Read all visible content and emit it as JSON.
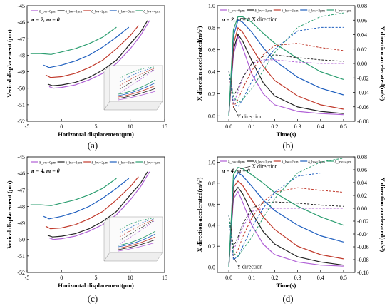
{
  "captions": [
    "(a)",
    "(b)",
    "(c)",
    "(d)"
  ],
  "colors": {
    "s0": "#b05fd6",
    "s1": "#222222",
    "s2": "#c0392b",
    "s3": "#1f5fbf",
    "s4": "#2a9d6f"
  },
  "legend_labels": [
    "δ_bw=0μm",
    "δ_bw=1μm",
    "δ_bw=2μm",
    "δ_bw=3μm",
    "δ_bw=4μm"
  ],
  "chart_data": [
    {
      "id": "a",
      "type": "line",
      "annotation": "n = 2, m = 0",
      "xlabel": "Horizontal displacement(μm)",
      "ylabel": "Verical displacement (μm)",
      "xlim": [
        -5,
        15
      ],
      "ylim": [
        -52,
        -45
      ],
      "xticks": [
        -5,
        0,
        5,
        10,
        15
      ],
      "yticks": [
        -52,
        -51,
        -50,
        -49,
        -48,
        -47,
        -46,
        -45
      ],
      "series": [
        {
          "name": "δ_bw=0μm",
          "x": [
            -1.8,
            -1.2,
            0,
            2,
            4,
            6,
            8,
            10,
            11.5,
            12.8
          ],
          "y": [
            -49.9,
            -50.0,
            -49.95,
            -49.8,
            -49.5,
            -49.1,
            -48.5,
            -47.6,
            -46.8,
            -45.9
          ]
        },
        {
          "name": "δ_bw=1μm",
          "x": [
            -2.0,
            -1.3,
            0,
            2,
            4,
            6,
            8,
            10,
            11.5,
            12.5
          ],
          "y": [
            -49.75,
            -49.85,
            -49.8,
            -49.65,
            -49.35,
            -48.9,
            -48.3,
            -47.3,
            -46.6,
            -45.9
          ]
        },
        {
          "name": "δ_bw=2μm",
          "x": [
            -2.3,
            -1.6,
            0,
            2,
            4,
            6,
            8,
            10,
            11.2
          ],
          "y": [
            -49.2,
            -49.35,
            -49.3,
            -49.1,
            -48.75,
            -48.3,
            -47.6,
            -46.8,
            -46.2
          ]
        },
        {
          "name": "δ_bw=3μm",
          "x": [
            -2.6,
            -1.8,
            0,
            2,
            4,
            6,
            8,
            9.8
          ],
          "y": [
            -48.6,
            -48.75,
            -48.6,
            -48.35,
            -48.0,
            -47.5,
            -46.9,
            -46.3
          ]
        },
        {
          "name": "δ_bw=4μm",
          "x": [
            -4.5,
            -3,
            -1.5,
            0,
            2,
            4,
            6,
            8
          ],
          "y": [
            -47.9,
            -47.9,
            -47.95,
            -47.8,
            -47.6,
            -47.3,
            -46.9,
            -46.3
          ]
        }
      ]
    },
    {
      "id": "b",
      "type": "line",
      "annotation": "n = 2, m = 0",
      "xlabel": "Time(s)",
      "ylabel": "X direction accelerated(m/s²)",
      "ylabel_right": "Y direction accelerated(m/s²)",
      "xlim": [
        -0.05,
        0.55
      ],
      "ylim": [
        -0.05,
        1.0
      ],
      "ylim_right": [
        -0.08,
        0.08
      ],
      "xticks": [
        0.0,
        0.1,
        0.2,
        0.3,
        0.4,
        0.5
      ],
      "yticks": [
        0.0,
        0.2,
        0.4,
        0.6,
        0.8,
        1.0
      ],
      "yticks_right": [
        -0.08,
        -0.06,
        -0.04,
        -0.02,
        0.0,
        0.02,
        0.04,
        0.06,
        0.08
      ],
      "text_labels": [
        "X direction",
        "Y direction"
      ],
      "x": [
        0.0,
        0.02,
        0.04,
        0.06,
        0.1,
        0.15,
        0.2,
        0.3,
        0.4,
        0.5
      ],
      "series_x": [
        {
          "name": "δ_bw=0μm",
          "values": [
            0.0,
            0.55,
            0.72,
            0.62,
            0.38,
            0.2,
            0.1,
            0.04,
            0.02,
            0.01
          ]
        },
        {
          "name": "δ_bw=1μm",
          "values": [
            0.0,
            0.6,
            0.74,
            0.68,
            0.5,
            0.3,
            0.18,
            0.08,
            0.04,
            0.02
          ]
        },
        {
          "name": "δ_bw=2μm",
          "values": [
            0.0,
            0.65,
            0.8,
            0.76,
            0.62,
            0.45,
            0.32,
            0.18,
            0.1,
            0.06
          ]
        },
        {
          "name": "δ_bw=3μm",
          "values": [
            0.0,
            0.72,
            0.87,
            0.85,
            0.76,
            0.62,
            0.5,
            0.35,
            0.25,
            0.19
          ]
        },
        {
          "name": "δ_bw=4μm",
          "values": [
            0.0,
            0.78,
            0.9,
            0.9,
            0.85,
            0.75,
            0.66,
            0.52,
            0.4,
            0.33
          ]
        }
      ],
      "series_y": [
        {
          "name": "δ_bw=0μm",
          "values": [
            -0.01,
            -0.055,
            -0.04,
            -0.02,
            0.0,
            0.005,
            0.005,
            0.002,
            0.0,
            0.0
          ]
        },
        {
          "name": "δ_bw=1μm",
          "values": [
            -0.01,
            -0.045,
            -0.035,
            -0.02,
            0.0,
            0.01,
            0.012,
            0.008,
            0.005,
            0.003
          ]
        },
        {
          "name": "δ_bw=2μm",
          "values": [
            -0.01,
            -0.06,
            -0.05,
            -0.035,
            -0.01,
            0.012,
            0.025,
            0.028,
            0.022,
            0.018
          ]
        },
        {
          "name": "δ_bw=3μm",
          "values": [
            -0.01,
            -0.055,
            -0.06,
            -0.05,
            -0.025,
            0.0,
            0.02,
            0.045,
            0.05,
            0.05
          ]
        },
        {
          "name": "δ_bw=4μm",
          "values": [
            -0.01,
            -0.045,
            -0.055,
            -0.05,
            -0.035,
            -0.01,
            0.015,
            0.05,
            0.065,
            0.07
          ]
        }
      ]
    },
    {
      "id": "c",
      "type": "line",
      "annotation": "n = 4, m = 0",
      "xlabel": "Horizontal displacement(μm)",
      "ylabel": "Verical displacement (μm)",
      "xlim": [
        -5,
        15
      ],
      "ylim": [
        -52,
        -45
      ],
      "xticks": [
        -5,
        0,
        5,
        10,
        15
      ],
      "yticks": [
        -52,
        -51,
        -50,
        -49,
        -48,
        -47,
        -46,
        -45
      ],
      "series": [
        {
          "name": "δ_bw=0μm",
          "x": [
            -1.8,
            -1.2,
            0,
            2,
            4,
            6,
            8,
            10,
            11.5,
            12.8
          ],
          "y": [
            -49.9,
            -50.0,
            -49.95,
            -49.8,
            -49.5,
            -49.1,
            -48.5,
            -47.6,
            -46.8,
            -45.9
          ]
        },
        {
          "name": "δ_bw=1μm",
          "x": [
            -2.0,
            -1.3,
            0,
            2,
            4,
            6,
            8,
            10,
            11.5,
            12.5
          ],
          "y": [
            -49.75,
            -49.85,
            -49.8,
            -49.65,
            -49.35,
            -48.9,
            -48.3,
            -47.3,
            -46.6,
            -45.9
          ]
        },
        {
          "name": "δ_bw=2μm",
          "x": [
            -2.3,
            -1.6,
            0,
            2,
            4,
            6,
            8,
            10,
            11.2
          ],
          "y": [
            -49.2,
            -49.35,
            -49.3,
            -49.1,
            -48.75,
            -48.3,
            -47.6,
            -46.8,
            -46.2
          ]
        },
        {
          "name": "δ_bw=3μm",
          "x": [
            -2.6,
            -1.8,
            0,
            2,
            4,
            6,
            8,
            9.8
          ],
          "y": [
            -48.6,
            -48.75,
            -48.6,
            -48.35,
            -48.0,
            -47.5,
            -46.9,
            -46.3
          ]
        },
        {
          "name": "δ_bw=4μm",
          "x": [
            -4.5,
            -3,
            -1.5,
            0,
            2,
            4,
            6,
            8
          ],
          "y": [
            -47.9,
            -47.9,
            -47.95,
            -47.8,
            -47.6,
            -47.3,
            -46.9,
            -46.3
          ]
        }
      ]
    },
    {
      "id": "d",
      "type": "line",
      "annotation": "n = 4, m = 0",
      "xlabel": "Time(s)",
      "ylabel": "X direction accelerated(m/s²)",
      "ylabel_right": "Y direction accelerated(m/s²)",
      "xlim": [
        -0.05,
        0.55
      ],
      "ylim": [
        -0.05,
        1.05
      ],
      "ylim_right": [
        -0.1,
        0.08
      ],
      "xticks": [
        0.0,
        0.1,
        0.2,
        0.3,
        0.4,
        0.5
      ],
      "yticks": [
        0.0,
        0.2,
        0.4,
        0.6,
        0.8,
        1.0
      ],
      "yticks_right": [
        -0.1,
        -0.08,
        -0.06,
        -0.04,
        -0.02,
        0.0,
        0.02,
        0.04,
        0.06,
        0.08
      ],
      "text_labels": [
        "X direction",
        "Y direction"
      ],
      "x": [
        0.0,
        0.02,
        0.04,
        0.06,
        0.1,
        0.15,
        0.2,
        0.3,
        0.4,
        0.5
      ],
      "series_x": [
        {
          "name": "δ_bw=0μm",
          "values": [
            0.0,
            0.65,
            0.72,
            0.62,
            0.4,
            0.22,
            0.12,
            0.05,
            0.02,
            0.01
          ]
        },
        {
          "name": "δ_bw=1μm",
          "values": [
            0.0,
            0.7,
            0.76,
            0.7,
            0.52,
            0.34,
            0.22,
            0.1,
            0.05,
            0.02
          ]
        },
        {
          "name": "δ_bw=2μm",
          "values": [
            0.0,
            0.76,
            0.82,
            0.78,
            0.64,
            0.48,
            0.36,
            0.2,
            0.12,
            0.08
          ]
        },
        {
          "name": "δ_bw=3μm",
          "values": [
            0.0,
            0.82,
            0.9,
            0.87,
            0.77,
            0.64,
            0.54,
            0.4,
            0.3,
            0.24
          ]
        },
        {
          "name": "δ_bw=4μm",
          "values": [
            0.0,
            0.88,
            0.95,
            0.94,
            0.88,
            0.8,
            0.71,
            0.58,
            0.48,
            0.4
          ]
        }
      ],
      "series_y": [
        {
          "name": "δ_bw=0μm",
          "values": [
            -0.01,
            -0.065,
            -0.05,
            -0.03,
            -0.005,
            0.0,
            0.0,
            0.0,
            0.0,
            0.0
          ]
        },
        {
          "name": "δ_bw=1μm",
          "values": [
            -0.01,
            -0.06,
            -0.045,
            -0.025,
            0.0,
            0.008,
            0.01,
            0.008,
            0.005,
            0.003
          ]
        },
        {
          "name": "δ_bw=2μm",
          "values": [
            -0.01,
            -0.075,
            -0.065,
            -0.045,
            -0.015,
            0.01,
            0.025,
            0.032,
            0.028,
            0.025
          ]
        },
        {
          "name": "δ_bw=3μm",
          "values": [
            -0.01,
            -0.08,
            -0.075,
            -0.06,
            -0.03,
            0.0,
            0.025,
            0.05,
            0.055,
            0.055
          ]
        },
        {
          "name": "δ_bw=4μm",
          "values": [
            -0.01,
            -0.07,
            -0.075,
            -0.065,
            -0.045,
            -0.015,
            0.015,
            0.055,
            0.072,
            0.078
          ]
        }
      ]
    }
  ]
}
